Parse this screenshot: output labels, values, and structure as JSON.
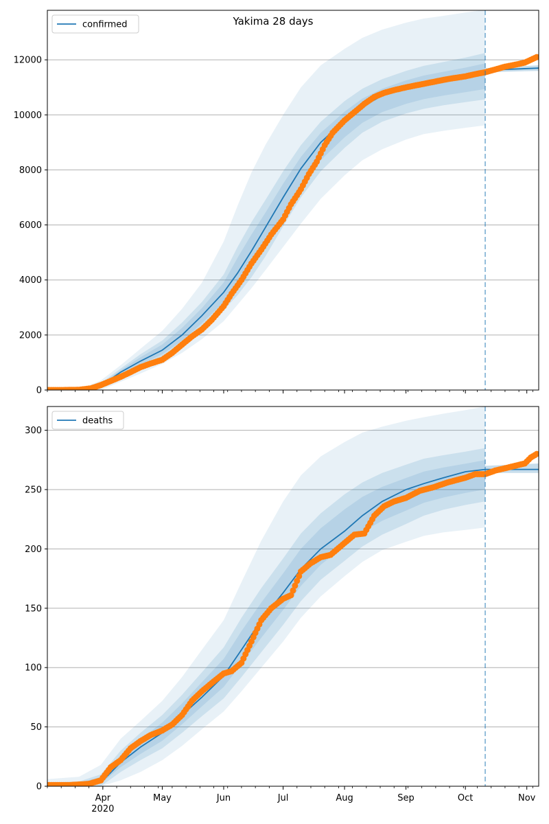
{
  "title": "Yakima 28 days",
  "x_ticks": {
    "labels": [
      "Apr",
      "May",
      "Jun",
      "Jul",
      "Aug",
      "Sep",
      "Oct",
      "Nov"
    ],
    "dates": [
      "2020-04-01",
      "2020-05-01",
      "2020-06-01",
      "2020-07-01",
      "2020-08-01",
      "2020-09-01",
      "2020-10-01",
      "2020-11-01"
    ],
    "year_label": "2020"
  },
  "x_range": [
    "2020-03-04",
    "2020-11-07"
  ],
  "forecast_start": "2020-10-11",
  "colors": {
    "model": "#1f77b4",
    "observed": "#ff7f0e",
    "band": "#1f77b4",
    "grid": "#b0b0b0",
    "vline": "#1f77b4"
  },
  "chart_data": [
    {
      "type": "line",
      "legend": "confirmed",
      "legend_position": "upper-left",
      "ylim": [
        0,
        13800
      ],
      "yticks": [
        0,
        2000,
        4000,
        6000,
        8000,
        10000,
        12000
      ],
      "grid": "horizontal",
      "series": [
        {
          "name": "confirmed",
          "kind": "model-median",
          "x": [
            "2020-03-04",
            "2020-03-20",
            "2020-03-31",
            "2020-04-10",
            "2020-04-20",
            "2020-05-01",
            "2020-05-11",
            "2020-05-21",
            "2020-06-01",
            "2020-06-08",
            "2020-06-15",
            "2020-06-22",
            "2020-07-01",
            "2020-07-10",
            "2020-07-20",
            "2020-08-01",
            "2020-08-10",
            "2020-08-20",
            "2020-09-01",
            "2020-09-10",
            "2020-09-20",
            "2020-10-01",
            "2020-10-11",
            "2020-10-20",
            "2020-11-07"
          ],
          "y": [
            0,
            0,
            150,
            650,
            1050,
            1450,
            2000,
            2700,
            3550,
            4250,
            5050,
            5900,
            7000,
            8050,
            9000,
            9800,
            10300,
            10700,
            11000,
            11150,
            11300,
            11450,
            11600,
            11650,
            11700
          ]
        },
        {
          "name": "confirmed",
          "kind": "observed",
          "x": [
            "2020-03-04",
            "2020-03-12",
            "2020-03-20",
            "2020-03-26",
            "2020-03-31",
            "2020-04-05",
            "2020-04-10",
            "2020-04-15",
            "2020-04-20",
            "2020-04-25",
            "2020-05-01",
            "2020-05-06",
            "2020-05-11",
            "2020-05-16",
            "2020-05-21",
            "2020-05-26",
            "2020-06-01",
            "2020-06-05",
            "2020-06-10",
            "2020-06-15",
            "2020-06-20",
            "2020-06-25",
            "2020-07-01",
            "2020-07-05",
            "2020-07-10",
            "2020-07-14",
            "2020-07-18",
            "2020-07-22",
            "2020-07-26",
            "2020-08-01",
            "2020-08-06",
            "2020-08-11",
            "2020-08-16",
            "2020-08-21",
            "2020-08-26",
            "2020-09-01",
            "2020-09-08",
            "2020-09-15",
            "2020-09-22",
            "2020-10-01",
            "2020-10-06",
            "2020-10-11",
            "2020-10-16",
            "2020-10-21",
            "2020-10-26",
            "2020-10-31",
            "2020-11-03",
            "2020-11-06"
          ],
          "y": [
            0,
            0,
            10,
            60,
            180,
            330,
            480,
            650,
            830,
            960,
            1100,
            1350,
            1650,
            1950,
            2200,
            2550,
            3050,
            3500,
            4000,
            4600,
            5100,
            5650,
            6200,
            6750,
            7300,
            7850,
            8300,
            8900,
            9350,
            9800,
            10100,
            10400,
            10650,
            10800,
            10900,
            11000,
            11100,
            11200,
            11300,
            11400,
            11480,
            11550,
            11650,
            11750,
            11820,
            11900,
            12000,
            12100
          ]
        }
      ],
      "bands": {
        "x": [
          "2020-03-04",
          "2020-03-20",
          "2020-03-31",
          "2020-04-10",
          "2020-04-20",
          "2020-05-01",
          "2020-05-11",
          "2020-05-21",
          "2020-06-01",
          "2020-06-08",
          "2020-06-15",
          "2020-06-22",
          "2020-07-01",
          "2020-07-10",
          "2020-07-20",
          "2020-08-01",
          "2020-08-10",
          "2020-08-20",
          "2020-09-01",
          "2020-09-10",
          "2020-09-20",
          "2020-10-01",
          "2020-10-11"
        ],
        "outer_upper": [
          0,
          10,
          350,
          900,
          1500,
          2150,
          2950,
          3900,
          5400,
          6700,
          7900,
          8900,
          10000,
          11000,
          11800,
          12400,
          12800,
          13100,
          13350,
          13500,
          13600,
          13720,
          13820
        ],
        "outer_lower": [
          0,
          0,
          0,
          300,
          600,
          950,
          1350,
          1850,
          2500,
          3100,
          3700,
          4350,
          5200,
          6050,
          6950,
          7800,
          8350,
          8750,
          9100,
          9300,
          9420,
          9530,
          9620
        ],
        "inner_upper": [
          0,
          5,
          250,
          780,
          1300,
          1800,
          2450,
          3200,
          4200,
          5200,
          6100,
          6900,
          7950,
          8900,
          9750,
          10500,
          10950,
          11300,
          11600,
          11780,
          11920,
          12080,
          12250
        ],
        "inner_lower": [
          0,
          0,
          50,
          500,
          820,
          1150,
          1600,
          2200,
          2900,
          3450,
          4100,
          4850,
          5950,
          7000,
          7950,
          8800,
          9350,
          9750,
          10050,
          10220,
          10350,
          10460,
          10560
        ]
      },
      "forecast_band": {
        "x": [
          "2020-10-11",
          "2020-11-07"
        ],
        "upper": [
          11700,
          11800
        ],
        "lower": [
          11550,
          11600
        ]
      }
    },
    {
      "type": "line",
      "legend": "deaths",
      "legend_position": "upper-left",
      "ylim": [
        0,
        320
      ],
      "yticks": [
        0,
        50,
        100,
        150,
        200,
        250,
        300
      ],
      "grid": "horizontal",
      "series": [
        {
          "name": "deaths",
          "kind": "model-median",
          "x": [
            "2020-03-04",
            "2020-03-20",
            "2020-03-31",
            "2020-04-10",
            "2020-04-20",
            "2020-05-01",
            "2020-05-11",
            "2020-05-21",
            "2020-06-01",
            "2020-06-10",
            "2020-06-20",
            "2020-07-01",
            "2020-07-10",
            "2020-07-20",
            "2020-08-01",
            "2020-08-10",
            "2020-08-20",
            "2020-09-01",
            "2020-09-10",
            "2020-09-20",
            "2020-10-01",
            "2020-10-11",
            "2020-10-20",
            "2020-11-07"
          ],
          "y": [
            0,
            0,
            3,
            20,
            33,
            45,
            60,
            75,
            93,
            115,
            140,
            163,
            183,
            200,
            215,
            228,
            240,
            250,
            255,
            260,
            265,
            267,
            267,
            267
          ]
        },
        {
          "name": "deaths",
          "kind": "observed",
          "x": [
            "2020-03-04",
            "2020-03-15",
            "2020-03-25",
            "2020-03-31",
            "2020-04-05",
            "2020-04-10",
            "2020-04-15",
            "2020-04-20",
            "2020-04-25",
            "2020-05-01",
            "2020-05-06",
            "2020-05-11",
            "2020-05-16",
            "2020-05-21",
            "2020-05-26",
            "2020-06-01",
            "2020-06-05",
            "2020-06-10",
            "2020-06-15",
            "2020-06-20",
            "2020-06-25",
            "2020-07-01",
            "2020-07-05",
            "2020-07-10",
            "2020-07-15",
            "2020-07-20",
            "2020-07-25",
            "2020-08-01",
            "2020-08-06",
            "2020-08-11",
            "2020-08-16",
            "2020-08-21",
            "2020-08-26",
            "2020-09-01",
            "2020-09-08",
            "2020-09-15",
            "2020-09-22",
            "2020-10-01",
            "2020-10-06",
            "2020-10-11",
            "2020-10-16",
            "2020-10-21",
            "2020-10-26",
            "2020-10-31",
            "2020-11-03",
            "2020-11-06"
          ],
          "y": [
            1,
            1,
            2,
            5,
            16,
            22,
            32,
            38,
            43,
            47,
            52,
            60,
            72,
            80,
            87,
            95,
            97,
            104,
            122,
            140,
            150,
            158,
            161,
            181,
            188,
            193,
            195,
            205,
            212,
            213,
            228,
            236,
            240,
            243,
            249,
            252,
            256,
            260,
            263,
            263,
            266,
            268,
            270,
            272,
            277,
            280
          ]
        }
      ],
      "bands": {
        "x": [
          "2020-03-04",
          "2020-03-20",
          "2020-03-31",
          "2020-04-10",
          "2020-04-20",
          "2020-05-01",
          "2020-05-11",
          "2020-05-21",
          "2020-06-01",
          "2020-06-10",
          "2020-06-20",
          "2020-07-01",
          "2020-07-10",
          "2020-07-20",
          "2020-08-01",
          "2020-08-10",
          "2020-08-20",
          "2020-09-01",
          "2020-09-10",
          "2020-09-20",
          "2020-10-01",
          "2020-10-11"
        ],
        "outer_upper": [
          6,
          8,
          18,
          40,
          55,
          72,
          92,
          115,
          140,
          172,
          207,
          240,
          262,
          278,
          290,
          298,
          303,
          308,
          311,
          314,
          317,
          320
        ],
        "outer_lower": [
          0,
          0,
          0,
          5,
          12,
          22,
          34,
          48,
          63,
          80,
          100,
          122,
          142,
          160,
          177,
          189,
          199,
          206,
          211,
          214,
          216,
          218
        ],
        "inner_upper": [
          3,
          4,
          10,
          30,
          45,
          60,
          77,
          96,
          117,
          142,
          167,
          192,
          213,
          230,
          246,
          256,
          264,
          271,
          276,
          279,
          282,
          285
        ],
        "inner_lower": [
          0,
          0,
          0,
          12,
          22,
          32,
          45,
          59,
          74,
          92,
          113,
          136,
          156,
          174,
          190,
          202,
          212,
          221,
          228,
          233,
          237,
          240
        ]
      },
      "forecast_band": {
        "x": [
          "2020-10-11",
          "2020-11-07"
        ],
        "upper": [
          270,
          272
        ],
        "lower": [
          264,
          264
        ]
      }
    }
  ]
}
